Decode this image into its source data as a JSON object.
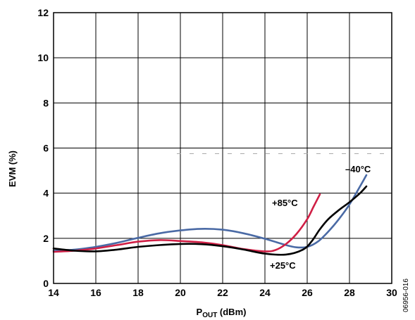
{
  "chart_data": {
    "type": "line",
    "xlabel": "P",
    "xlabel_sub": "OUT",
    "xlabel_unit": " (dBm)",
    "ylabel": "EVM (%)",
    "xlim": [
      14,
      30
    ],
    "ylim": [
      0,
      12
    ],
    "x_ticks": [
      14,
      16,
      18,
      20,
      22,
      24,
      26,
      28,
      30
    ],
    "y_ticks": [
      0,
      2,
      4,
      6,
      8,
      10,
      12
    ],
    "grid": true,
    "figure_id": "06956-016",
    "series": [
      {
        "name": "+25°C",
        "color": "#000000",
        "x": [
          14.0,
          15.0,
          16.0,
          17.0,
          18.0,
          19.0,
          20.0,
          21.0,
          22.0,
          23.0,
          24.0,
          25.0,
          25.8,
          26.2,
          26.6,
          27.0,
          27.5,
          28.0,
          28.5,
          28.8
        ],
        "y": [
          1.55,
          1.45,
          1.42,
          1.5,
          1.62,
          1.7,
          1.75,
          1.74,
          1.65,
          1.5,
          1.32,
          1.28,
          1.5,
          1.85,
          2.4,
          2.85,
          3.25,
          3.6,
          4.0,
          4.3
        ]
      },
      {
        "name": "+85°C",
        "color": "#d01f45",
        "x": [
          14.0,
          15.0,
          16.0,
          17.0,
          18.0,
          19.0,
          20.0,
          21.0,
          22.0,
          23.0,
          24.0,
          24.5,
          25.0,
          25.5,
          26.0,
          26.3,
          26.6
        ],
        "y": [
          1.4,
          1.45,
          1.55,
          1.7,
          1.85,
          1.92,
          1.88,
          1.82,
          1.7,
          1.52,
          1.42,
          1.48,
          1.75,
          2.2,
          2.85,
          3.4,
          3.95
        ]
      },
      {
        "name": "–40°C",
        "color": "#4a6aa5",
        "x": [
          14.0,
          15.0,
          16.0,
          17.0,
          18.0,
          19.0,
          20.0,
          21.0,
          22.0,
          23.0,
          24.0,
          25.0,
          25.5,
          26.0,
          26.5,
          27.0,
          27.5,
          28.0,
          28.5,
          28.8
        ],
        "y": [
          1.45,
          1.5,
          1.62,
          1.8,
          2.02,
          2.22,
          2.35,
          2.42,
          2.38,
          2.22,
          1.98,
          1.7,
          1.6,
          1.62,
          1.85,
          2.3,
          2.85,
          3.5,
          4.3,
          4.8
        ]
      }
    ],
    "annotations": [
      {
        "text": "+85°C",
        "series": 1
      },
      {
        "text": "+25°C",
        "series": 0
      },
      {
        "text": "–40°C",
        "series": 2
      }
    ],
    "dashed_line_y": 5.75
  }
}
